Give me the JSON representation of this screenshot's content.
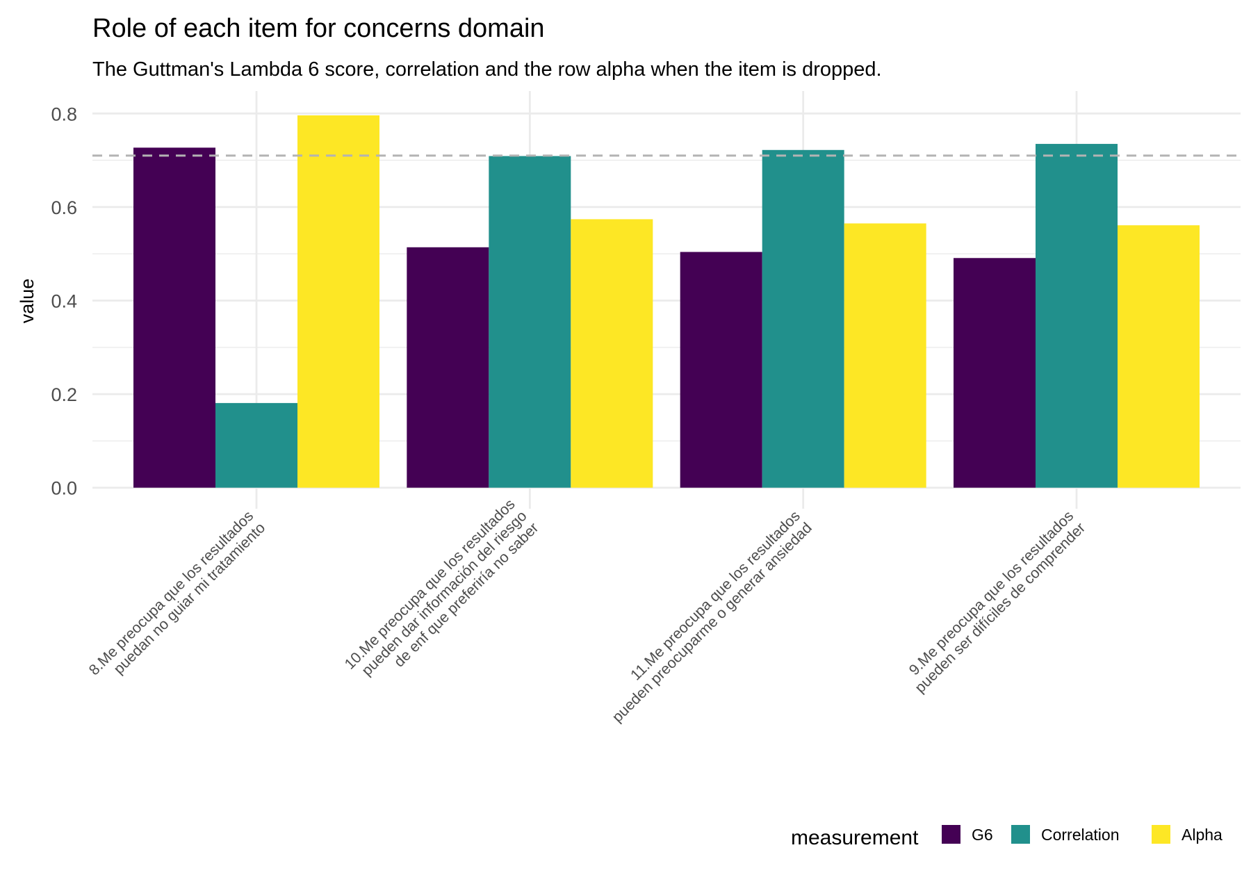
{
  "chart_data": {
    "type": "bar",
    "title": "Role of each item for concerns domain",
    "subtitle": "The Guttman's Lambda 6 score, correlation and the row alpha when the item is dropped.",
    "xlabel": "",
    "ylabel": "value",
    "ylim": [
      -0.045,
      0.848
    ],
    "yticks": [
      0.0,
      0.2,
      0.4,
      0.6,
      0.8
    ],
    "ytick_labels": [
      "0.0",
      "0.2",
      "0.4",
      "0.6",
      "0.8"
    ],
    "reference_line": 0.71,
    "categories": [
      [
        "8.Me preocupa que los resultados",
        "puedan no guiar mi tratamiento"
      ],
      [
        "10.Me preocupa que los resultados",
        "pueden dar información del riesgo",
        "de enf que preferiría no saber"
      ],
      [
        "11.Me preocupa que los resultados",
        "pueden preocuparme o generar ansiedad"
      ],
      [
        "9.Me preocupa que los resultados",
        "pueden ser difíciles de comprender"
      ]
    ],
    "series": [
      {
        "name": "G6",
        "color": "#440154",
        "values": [
          0.727,
          0.514,
          0.504,
          0.491
        ]
      },
      {
        "name": "Correlation",
        "color": "#21908C",
        "values": [
          0.181,
          0.709,
          0.722,
          0.735
        ]
      },
      {
        "name": "Alpha",
        "color": "#FDE725",
        "values": [
          0.796,
          0.574,
          0.565,
          0.561
        ]
      }
    ],
    "legend": {
      "title": "measurement",
      "position": "bottom-right"
    },
    "grid": true
  }
}
